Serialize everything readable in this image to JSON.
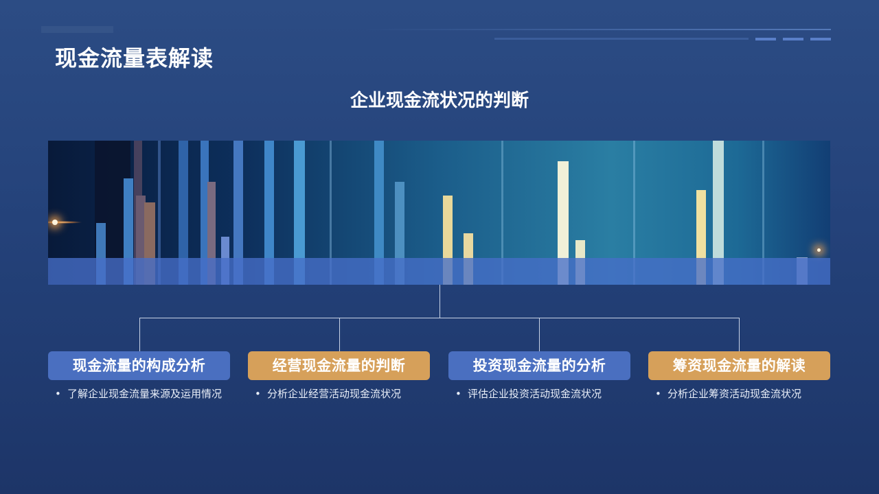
{
  "slide": {
    "title": "现金流量表解读",
    "subtitle": "企业现金流状况的判断"
  },
  "cards": [
    {
      "title": "现金流量的构成分析",
      "color": "#4a6fc0",
      "bullet": "了解企业现金流量来源及运用情况"
    },
    {
      "title": "经营现金流量的判断",
      "color": "#d6a05a",
      "bullet": "分析企业经营活动现金流状况"
    },
    {
      "title": "投资现金流量的分析",
      "color": "#4a6fc0",
      "bullet": "评估企业投资活动现金流状况"
    },
    {
      "title": "筹资现金流量的解读",
      "color": "#d6a05a",
      "bullet": "分析企业筹资活动现金流状况"
    }
  ],
  "icons": {
    "bullet": "bullet-dot-icon"
  }
}
